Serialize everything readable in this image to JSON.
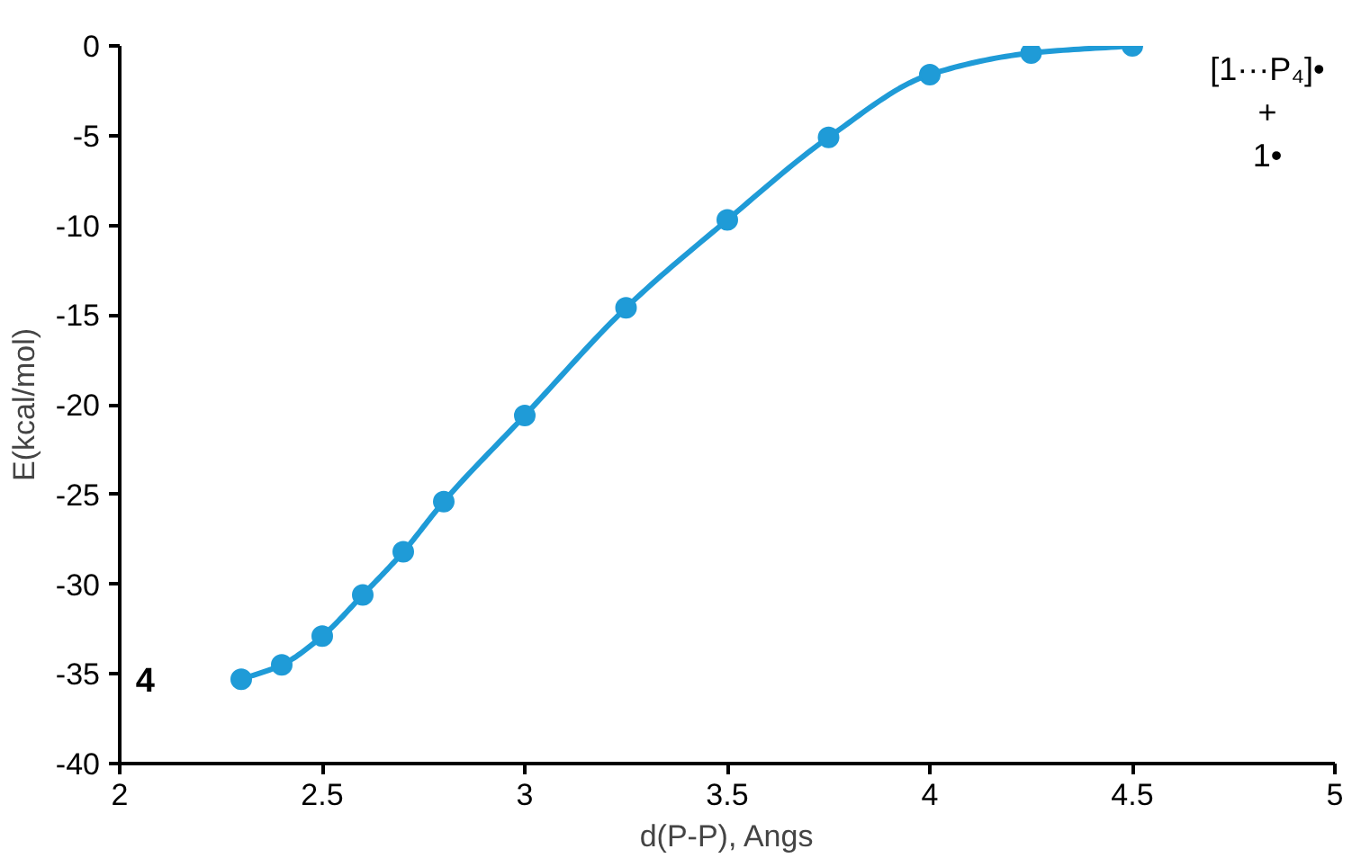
{
  "chart_data": {
    "type": "line",
    "xlabel": "d(P-P), Angs",
    "ylabel": "E(kcal/mol)",
    "x": [
      2.3,
      2.4,
      2.5,
      2.6,
      2.7,
      2.8,
      3.0,
      3.25,
      3.5,
      3.75,
      4.0,
      4.25,
      4.5
    ],
    "series": [
      {
        "color": "#1f9bd7",
        "values": [
          -35.3,
          -34.5,
          -32.9,
          -30.6,
          -28.2,
          -25.4,
          -20.6,
          -14.6,
          -9.7,
          -5.1,
          -1.6,
          -0.4,
          0
        ]
      }
    ],
    "xlim": [
      2,
      5
    ],
    "xticks": [
      2,
      2.5,
      3,
      3.5,
      4,
      4.5,
      5
    ],
    "ylim": [
      -40,
      0
    ],
    "yticks": [
      -40,
      -35,
      -30,
      -25,
      -20,
      -15,
      -10,
      -5,
      0
    ],
    "grid": false,
    "marker": "circle",
    "line_style": "solid",
    "annotations": [
      {
        "text": "4",
        "x": 2.3,
        "y": -35.3
      },
      {
        "text": "[1···P₄]•\n+\n1•",
        "x": 4.5,
        "y": 0
      }
    ]
  }
}
